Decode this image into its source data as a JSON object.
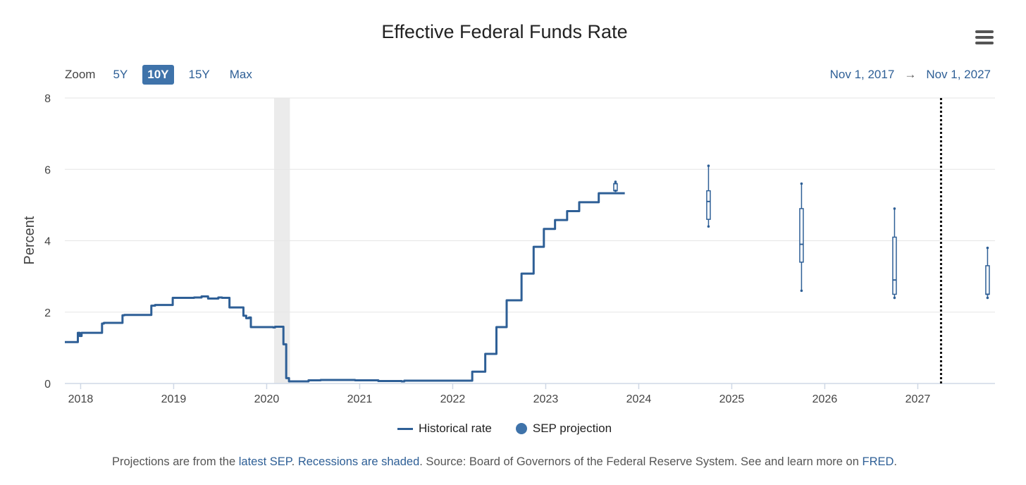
{
  "header": {
    "title": "Effective Federal Funds Rate"
  },
  "zoom": {
    "label": "Zoom",
    "options": [
      "5Y",
      "10Y",
      "15Y",
      "Max"
    ],
    "selected": "10Y"
  },
  "range": {
    "from": "Nov 1, 2017",
    "arrow": "→",
    "to": "Nov 1, 2027"
  },
  "legend": {
    "historical": "Historical rate",
    "projection": "SEP projection"
  },
  "footer": {
    "t1": "Projections are from the ",
    "link1": "latest SEP",
    "t2": ". ",
    "link2": "Recessions are shaded",
    "t3": ". Source: Board of Governors of the Federal Reserve System. See and learn more on ",
    "link3": "FRED",
    "t4": "."
  },
  "colors": {
    "series": "#2e5f96",
    "recession": "#ebebeb",
    "grid": "#e6e6e6"
  },
  "chart_data": {
    "type": "line",
    "title": "Effective Federal Funds Rate",
    "ylabel": "Percent",
    "xlim": [
      2017.83,
      2027.83
    ],
    "ylim": [
      0,
      8
    ],
    "yticks": [
      0,
      2,
      4,
      6,
      8
    ],
    "xticks": [
      2018,
      2019,
      2020,
      2021,
      2022,
      2023,
      2024,
      2025,
      2026,
      2027
    ],
    "grid": true,
    "legend_position": "bottom",
    "recession": [
      2020.08,
      2020.25
    ],
    "vertical_marker": 2027.25,
    "series": [
      {
        "name": "Historical rate",
        "type": "step",
        "points": [
          [
            2017.83,
            1.16
          ],
          [
            2017.95,
            1.16
          ],
          [
            2017.97,
            1.42
          ],
          [
            2017.99,
            1.33
          ],
          [
            2018.01,
            1.42
          ],
          [
            2018.21,
            1.42
          ],
          [
            2018.23,
            1.68
          ],
          [
            2018.25,
            1.7
          ],
          [
            2018.43,
            1.7
          ],
          [
            2018.45,
            1.91
          ],
          [
            2018.47,
            1.92
          ],
          [
            2018.74,
            1.92
          ],
          [
            2018.76,
            2.18
          ],
          [
            2018.8,
            2.2
          ],
          [
            2018.97,
            2.2
          ],
          [
            2018.99,
            2.4
          ],
          [
            2019.22,
            2.41
          ],
          [
            2019.3,
            2.44
          ],
          [
            2019.37,
            2.38
          ],
          [
            2019.42,
            2.38
          ],
          [
            2019.48,
            2.41
          ],
          [
            2019.52,
            2.4
          ],
          [
            2019.58,
            2.4
          ],
          [
            2019.6,
            2.13
          ],
          [
            2019.73,
            2.13
          ],
          [
            2019.75,
            1.9
          ],
          [
            2019.78,
            1.83
          ],
          [
            2019.81,
            1.85
          ],
          [
            2019.83,
            1.58
          ],
          [
            2020.07,
            1.57
          ],
          [
            2020.09,
            1.59
          ],
          [
            2020.16,
            1.59
          ],
          [
            2020.18,
            1.1
          ],
          [
            2020.2,
            1.1
          ],
          [
            2020.21,
            0.15
          ],
          [
            2020.24,
            0.06
          ],
          [
            2020.42,
            0.06
          ],
          [
            2020.45,
            0.09
          ],
          [
            2020.52,
            0.09
          ],
          [
            2020.58,
            0.1
          ],
          [
            2020.95,
            0.09
          ],
          [
            2021.2,
            0.07
          ],
          [
            2021.45,
            0.06
          ],
          [
            2021.48,
            0.08
          ],
          [
            2021.7,
            0.08
          ],
          [
            2021.95,
            0.08
          ],
          [
            2022.19,
            0.08
          ],
          [
            2022.21,
            0.33
          ],
          [
            2022.33,
            0.33
          ],
          [
            2022.35,
            0.83
          ],
          [
            2022.45,
            0.83
          ],
          [
            2022.47,
            1.58
          ],
          [
            2022.56,
            1.58
          ],
          [
            2022.58,
            2.33
          ],
          [
            2022.72,
            2.33
          ],
          [
            2022.74,
            3.08
          ],
          [
            2022.85,
            3.08
          ],
          [
            2022.87,
            3.83
          ],
          [
            2022.96,
            3.83
          ],
          [
            2022.98,
            4.33
          ],
          [
            2023.08,
            4.33
          ],
          [
            2023.1,
            4.58
          ],
          [
            2023.21,
            4.58
          ],
          [
            2023.23,
            4.83
          ],
          [
            2023.34,
            4.83
          ],
          [
            2023.36,
            5.08
          ],
          [
            2023.55,
            5.08
          ],
          [
            2023.57,
            5.33
          ],
          [
            2023.85,
            5.33
          ]
        ]
      },
      {
        "name": "SEP projection",
        "type": "boxplot",
        "boxes": [
          {
            "x": 2023.75,
            "min": 5.4,
            "q1": 5.4,
            "median": 5.6,
            "q3": 5.6,
            "max": 5.65
          },
          {
            "x": 2024.75,
            "min": 4.4,
            "q1": 4.6,
            "median": 5.1,
            "q3": 5.4,
            "max": 6.1
          },
          {
            "x": 2025.75,
            "min": 2.6,
            "q1": 3.4,
            "median": 3.9,
            "q3": 4.9,
            "max": 5.6
          },
          {
            "x": 2026.75,
            "min": 2.4,
            "q1": 2.5,
            "median": 2.9,
            "q3": 4.1,
            "max": 4.9
          },
          {
            "x": 2027.75,
            "min": 2.4,
            "q1": 2.5,
            "median": 2.5,
            "q3": 3.3,
            "max": 3.8
          }
        ]
      }
    ]
  }
}
